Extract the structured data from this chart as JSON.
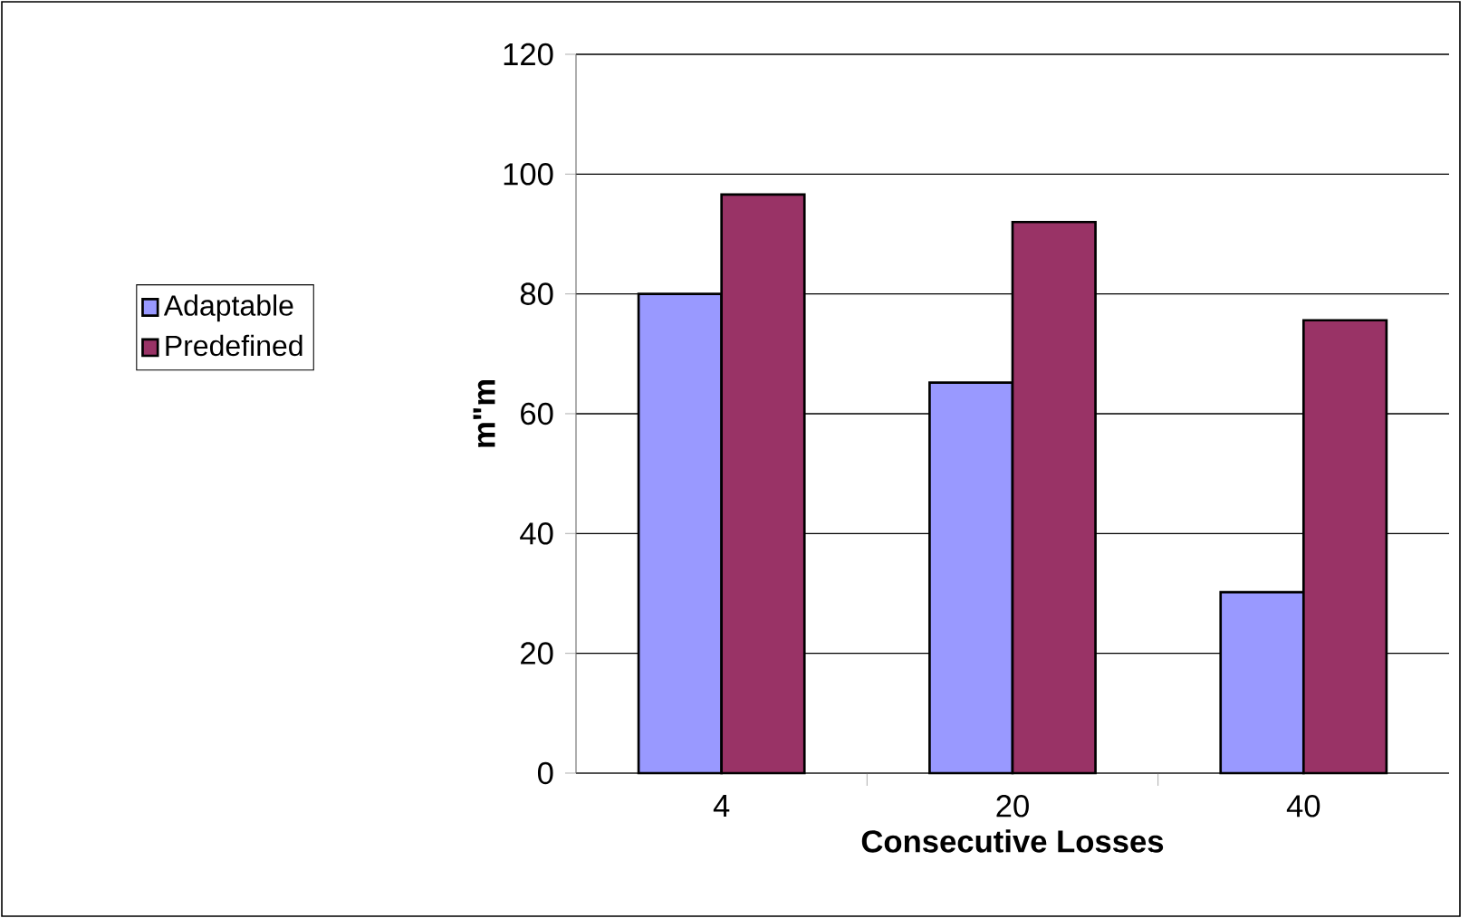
{
  "chart_data": {
    "type": "bar",
    "xlabel": "Consecutive Losses",
    "ylabel": "m\"m",
    "categories": [
      "4",
      "20",
      "40"
    ],
    "series": [
      {
        "name": "Adaptable",
        "color": "#9999ff",
        "values": [
          80,
          65.2,
          30.2
        ]
      },
      {
        "name": "Predefined",
        "color": "#993366",
        "values": [
          96.6,
          92.0,
          75.6
        ]
      }
    ],
    "ylim": [
      0,
      120
    ],
    "yticks": [
      0,
      20,
      40,
      60,
      80,
      100,
      120
    ],
    "grid": "y",
    "legend": "left"
  }
}
